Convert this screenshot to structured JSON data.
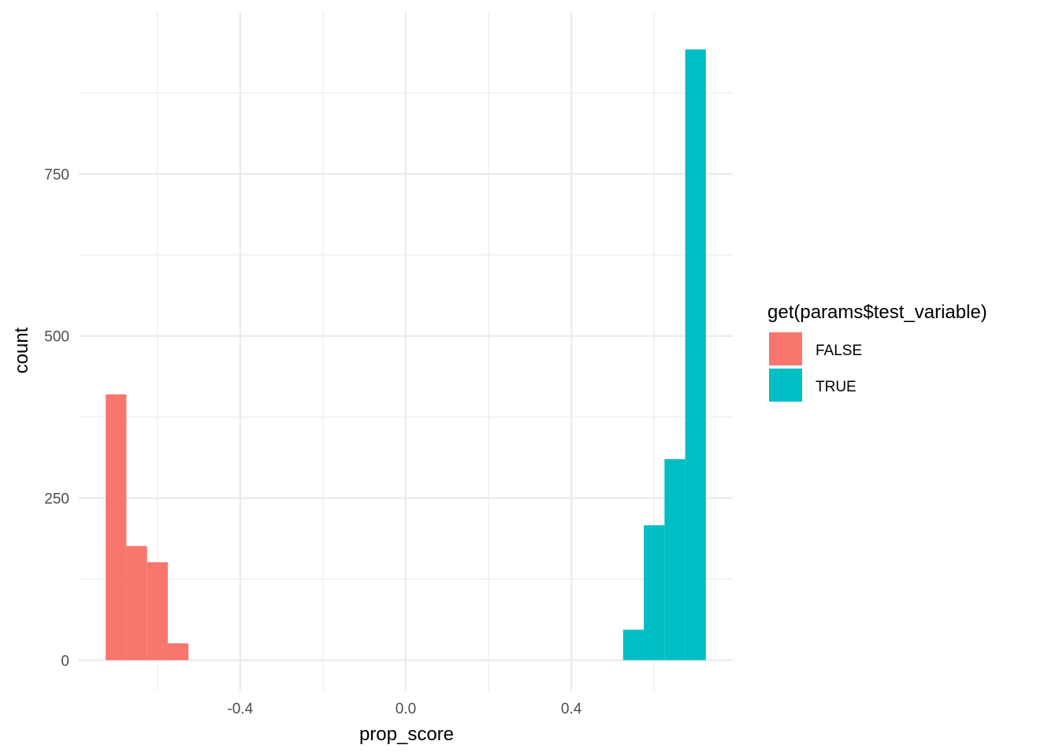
{
  "chart_data": {
    "type": "bar",
    "subtype": "histogram",
    "xlabel": "prop_score",
    "ylabel": "count",
    "x_ticks": [
      {
        "value": -0.4,
        "label": "-0.4"
      },
      {
        "value": 0.0,
        "label": "0.0"
      },
      {
        "value": 0.4,
        "label": "0.4"
      }
    ],
    "y_ticks": [
      {
        "value": 0,
        "label": "0"
      },
      {
        "value": 250,
        "label": "250"
      },
      {
        "value": 500,
        "label": "500"
      },
      {
        "value": 750,
        "label": "750"
      }
    ],
    "xlim": [
      -0.79,
      0.79
    ],
    "ylim": [
      -47,
      1000
    ],
    "grid": true,
    "bin_width": 0.05,
    "legend": {
      "title": "get(params$test_variable)",
      "placement": "right",
      "entries": [
        {
          "label": "FALSE",
          "color": "#F8766D"
        },
        {
          "label": "TRUE",
          "color": "#00BFC4"
        }
      ]
    },
    "series": [
      {
        "name": "FALSE",
        "color": "#F8766D",
        "bins": [
          {
            "x0": -0.725,
            "x1": -0.675,
            "count": 410
          },
          {
            "x0": -0.675,
            "x1": -0.625,
            "count": 176
          },
          {
            "x0": -0.625,
            "x1": -0.575,
            "count": 151
          },
          {
            "x0": -0.575,
            "x1": -0.525,
            "count": 26
          }
        ]
      },
      {
        "name": "TRUE",
        "color": "#00BFC4",
        "bins": [
          {
            "x0": 0.525,
            "x1": 0.575,
            "count": 47
          },
          {
            "x0": 0.575,
            "x1": 0.625,
            "count": 208
          },
          {
            "x0": 0.625,
            "x1": 0.675,
            "count": 310
          },
          {
            "x0": 0.675,
            "x1": 0.725,
            "count": 942
          }
        ]
      }
    ],
    "baseline_x_range": [
      -0.725,
      0.725
    ]
  }
}
